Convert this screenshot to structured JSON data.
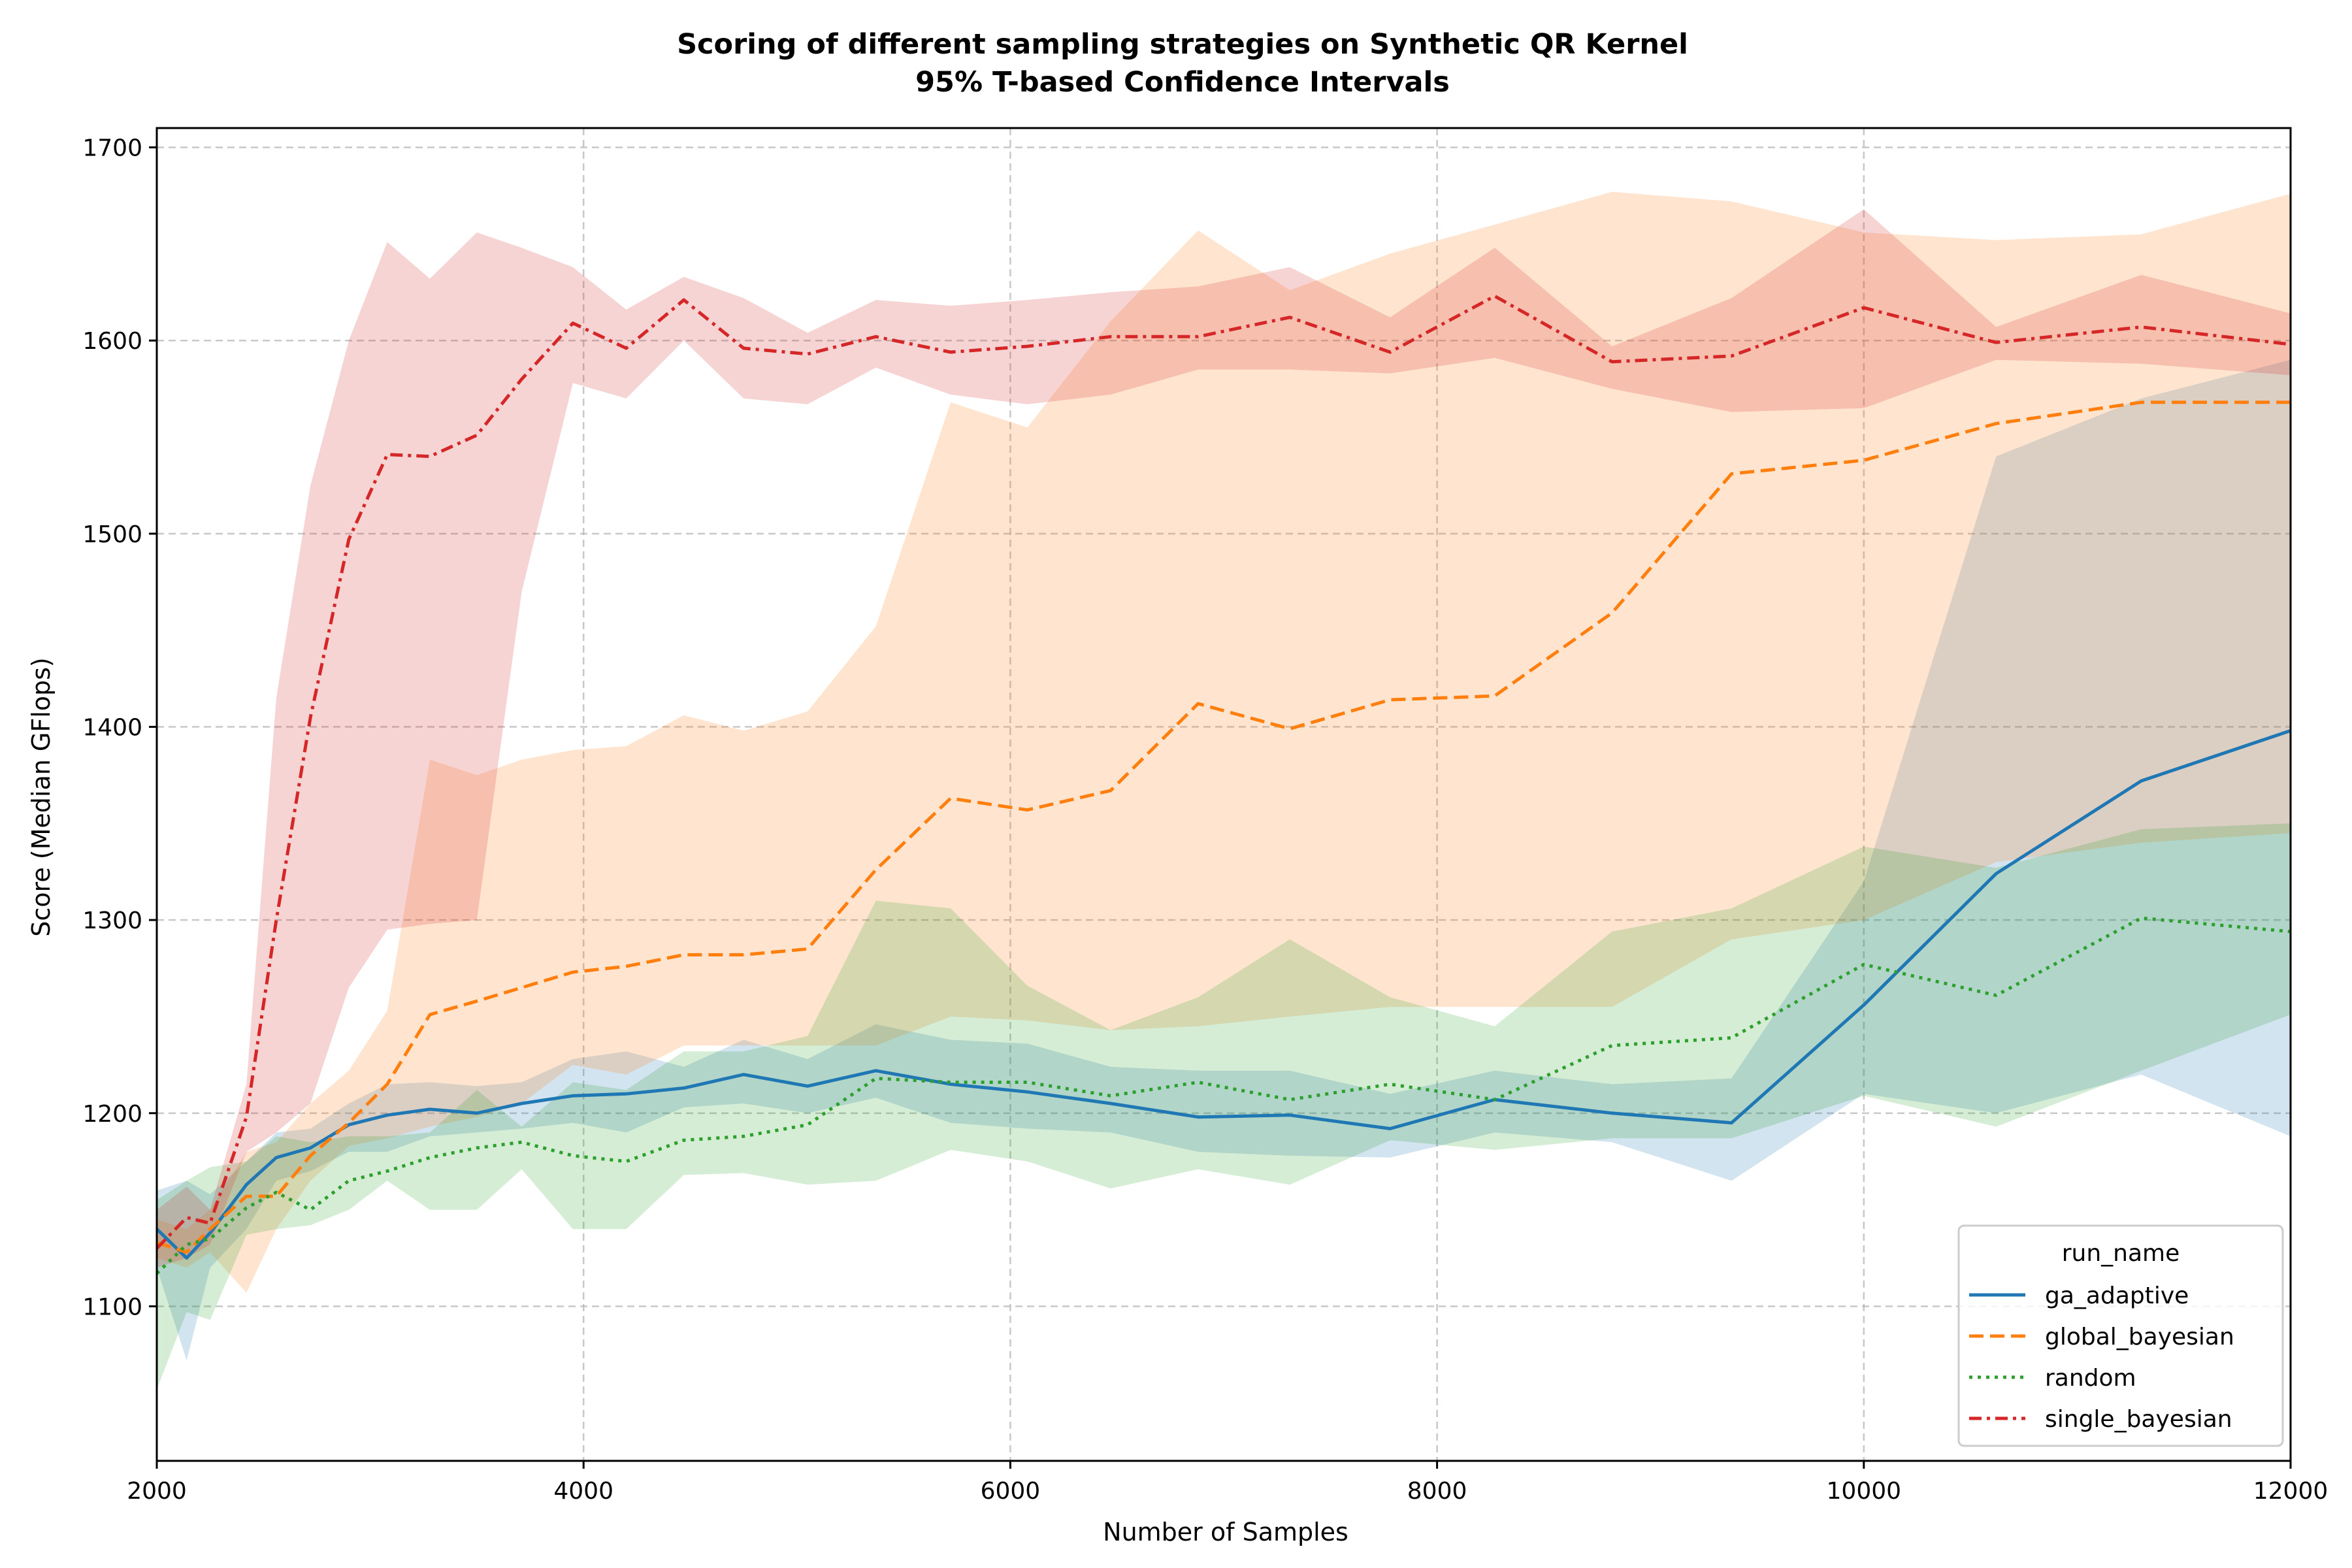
{
  "chart_data": {
    "type": "line",
    "title": "Scoring of different sampling strategies on Synthetic QR Kernel",
    "subtitle": "95% T-based Confidence Intervals",
    "xlabel": "Number of Samples",
    "ylabel": "Score (Median GFlops)",
    "xlim": [
      2000,
      12000
    ],
    "ylim": [
      1020,
      1710
    ],
    "xticks": [
      2000,
      4000,
      6000,
      8000,
      10000,
      12000
    ],
    "yticks": [
      1100,
      1200,
      1300,
      1400,
      1500,
      1600,
      1700
    ],
    "grid": true,
    "legend": {
      "title": "run_name",
      "placement": "bottom-right"
    },
    "series": [
      {
        "name": "ga_adaptive",
        "color": "#1f77b4",
        "style": "solid",
        "x": [
          2000,
          2140,
          2250,
          2420,
          2560,
          2720,
          2900,
          3080,
          3280,
          3500,
          3710,
          3950,
          4200,
          4470,
          4750,
          5050,
          5370,
          5720,
          6080,
          6470,
          6880,
          7310,
          7780,
          8270,
          8820,
          9380,
          10000,
          10620,
          11300,
          12000
        ],
        "y": [
          1140,
          1125,
          1138,
          1163,
          1177,
          1182,
          1194,
          1199,
          1202,
          1200,
          1205,
          1209,
          1210,
          1213,
          1220,
          1214,
          1222,
          1215,
          1211,
          1205,
          1198,
          1199,
          1192,
          1207,
          1200,
          1195,
          1256,
          1324,
          1372,
          1398
        ],
        "lower": [
          1120,
          1072,
          1120,
          1140,
          1165,
          1170,
          1180,
          1180,
          1188,
          1190,
          1192,
          1195,
          1190,
          1203,
          1205,
          1200,
          1208,
          1195,
          1192,
          1190,
          1180,
          1178,
          1177,
          1190,
          1185,
          1165,
          1210,
          1200,
          1220,
          1188
        ],
        "upper": [
          1160,
          1165,
          1158,
          1175,
          1190,
          1192,
          1205,
          1215,
          1216,
          1214,
          1216,
          1228,
          1232,
          1224,
          1238,
          1228,
          1246,
          1238,
          1236,
          1224,
          1222,
          1222,
          1210,
          1222,
          1215,
          1218,
          1320,
          1540,
          1570,
          1590
        ]
      },
      {
        "name": "global_bayesian",
        "color": "#ff7f0e",
        "style": "dashed",
        "x": [
          2000,
          2140,
          2250,
          2420,
          2560,
          2720,
          2900,
          3080,
          3280,
          3500,
          3710,
          3950,
          4200,
          4470,
          4750,
          5050,
          5370,
          5720,
          6080,
          6470,
          6880,
          7310,
          7780,
          8270,
          8820,
          9380,
          10000,
          10620,
          11300,
          12000
        ],
        "y": [
          1133,
          1128,
          1140,
          1157,
          1157,
          1178,
          1195,
          1215,
          1251,
          1258,
          1265,
          1273,
          1276,
          1282,
          1282,
          1285,
          1326,
          1363,
          1357,
          1367,
          1412,
          1399,
          1414,
          1416,
          1459,
          1531,
          1538,
          1557,
          1568,
          1568
        ],
        "lower": [
          1125,
          1120,
          1128,
          1107,
          1140,
          1165,
          1183,
          1187,
          1193,
          1198,
          1205,
          1225,
          1220,
          1235,
          1235,
          1235,
          1235,
          1250,
          1248,
          1243,
          1245,
          1250,
          1255,
          1255,
          1255,
          1290,
          1300,
          1330,
          1340,
          1345
        ],
        "upper": [
          1145,
          1140,
          1150,
          1180,
          1185,
          1205,
          1222,
          1253,
          1383,
          1375,
          1383,
          1388,
          1390,
          1406,
          1398,
          1408,
          1452,
          1568,
          1555,
          1610,
          1657,
          1626,
          1645,
          1660,
          1677,
          1672,
          1656,
          1652,
          1655,
          1676
        ]
      },
      {
        "name": "random",
        "color": "#2ca02c",
        "style": "dotted",
        "x": [
          2000,
          2140,
          2250,
          2420,
          2560,
          2720,
          2900,
          3080,
          3280,
          3500,
          3710,
          3950,
          4200,
          4470,
          4750,
          5050,
          5370,
          5720,
          6080,
          6470,
          6880,
          7310,
          7780,
          8270,
          8820,
          9380,
          10000,
          10620,
          11300,
          12000
        ],
        "y": [
          1117,
          1132,
          1135,
          1151,
          1159,
          1150,
          1165,
          1170,
          1177,
          1182,
          1185,
          1178,
          1175,
          1186,
          1188,
          1194,
          1218,
          1216,
          1216,
          1209,
          1216,
          1207,
          1215,
          1207,
          1235,
          1239,
          1277,
          1261,
          1301,
          1294
        ],
        "lower": [
          1057,
          1097,
          1093,
          1137,
          1140,
          1142,
          1150,
          1165,
          1150,
          1150,
          1171,
          1140,
          1140,
          1168,
          1169,
          1163,
          1165,
          1181,
          1175,
          1161,
          1171,
          1163,
          1186,
          1181,
          1187,
          1187,
          1209,
          1193,
          1222,
          1251
        ],
        "upper": [
          1155,
          1165,
          1172,
          1175,
          1188,
          1185,
          1188,
          1188,
          1190,
          1212,
          1193,
          1216,
          1212,
          1232,
          1232,
          1240,
          1310,
          1306,
          1266,
          1243,
          1260,
          1290,
          1260,
          1245,
          1294,
          1306,
          1338,
          1327,
          1347,
          1350
        ]
      },
      {
        "name": "single_bayesian",
        "color": "#d62728",
        "style": "dashdot",
        "x": [
          2000,
          2140,
          2250,
          2420,
          2560,
          2720,
          2900,
          3080,
          3280,
          3500,
          3710,
          3950,
          4200,
          4470,
          4750,
          5050,
          5370,
          5720,
          6080,
          6470,
          6880,
          7310,
          7780,
          8270,
          8820,
          9380,
          10000,
          10620,
          11300,
          12000
        ],
        "y": [
          1130,
          1146,
          1143,
          1198,
          1300,
          1405,
          1497,
          1541,
          1540,
          1551,
          1580,
          1609,
          1596,
          1621,
          1596,
          1593,
          1602,
          1594,
          1597,
          1602,
          1602,
          1612,
          1594,
          1623,
          1589,
          1592,
          1617,
          1599,
          1607,
          1598
        ],
        "lower": [
          1120,
          1125,
          1132,
          1180,
          1190,
          1205,
          1265,
          1295,
          1298,
          1300,
          1470,
          1578,
          1570,
          1600,
          1570,
          1567,
          1586,
          1572,
          1567,
          1572,
          1585,
          1585,
          1583,
          1591,
          1575,
          1563,
          1565,
          1590,
          1588,
          1582
        ],
        "upper": [
          1150,
          1162,
          1150,
          1215,
          1415,
          1525,
          1600,
          1651,
          1632,
          1656,
          1648,
          1638,
          1616,
          1633,
          1622,
          1604,
          1621,
          1618,
          1621,
          1625,
          1628,
          1638,
          1612,
          1648,
          1597,
          1622,
          1668,
          1607,
          1634,
          1614
        ]
      }
    ]
  }
}
